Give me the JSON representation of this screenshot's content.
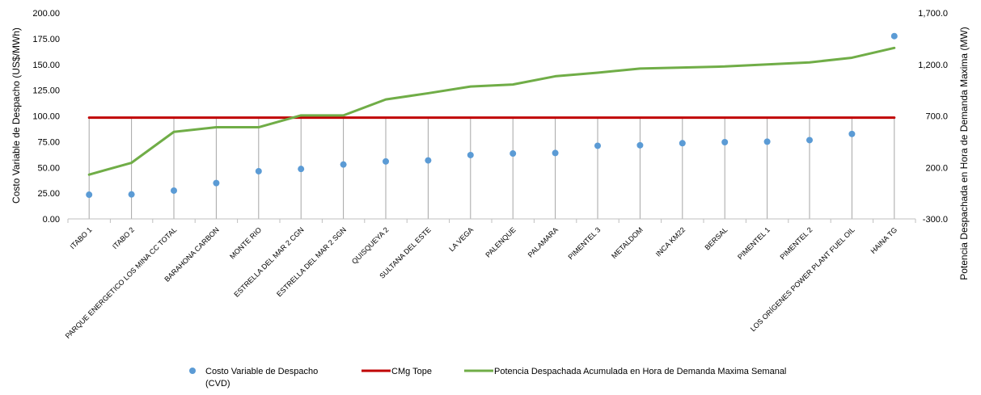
{
  "chart_data": {
    "type": "line",
    "categories": [
      "ITABO 1",
      "ITABO 2",
      "PARQUE ENERGETICO LOS MINA CC TOTAL",
      "BARAHONA CARBON",
      "MONTE RIO",
      "ESTRELLA DEL MAR 2 CGN",
      "ESTRELLA DEL MAR 2 SGN",
      "QUISQUEYA 2",
      "SULTANA DEL ESTE",
      "LA VEGA",
      "PALENQUE",
      "PALAMARA",
      "PIMENTEL 3",
      "METALDOM",
      "INCA KM22",
      "BERSAL",
      "PIMENTEL 1",
      "PIMENTEL 2",
      "LOS ORÍGENES POWER PLANT FUEL OIL",
      "HAINA TG"
    ],
    "ylabel": "Costo Variable de Despacho (US$/MWh)",
    "y2label": "Potencia Despachada en Hora de Demanda Maxima (MW)",
    "ylim": [
      0,
      200
    ],
    "y2lim": [
      -300,
      1700
    ],
    "yticks": [
      "0.00",
      "25.00",
      "50.00",
      "75.00",
      "100.00",
      "125.00",
      "150.00",
      "175.00",
      "200.00"
    ],
    "y2ticks": [
      "-300.0",
      "200.0",
      "700.0",
      "1,200.0",
      "1,700.0"
    ],
    "series": [
      {
        "name": "Costo Variable de Despacho (CVD)",
        "type": "scatter",
        "axis": "left",
        "color": "#5B9BD5",
        "values": [
          23.5,
          23.8,
          27.5,
          34.8,
          46.3,
          48.5,
          52.8,
          55.8,
          56.8,
          62.0,
          63.5,
          64.0,
          71.0,
          71.5,
          73.5,
          74.5,
          75.0,
          76.5,
          82.5,
          177.5
        ]
      },
      {
        "name": "CMg Tope",
        "type": "line",
        "axis": "left",
        "color": "#C00000",
        "values": [
          98.3,
          98.3,
          98.3,
          98.3,
          98.3,
          98.3,
          98.3,
          98.3,
          98.3,
          98.3,
          98.3,
          98.3,
          98.3,
          98.3,
          98.3,
          98.3,
          98.3,
          98.3,
          98.3,
          98.3
        ]
      },
      {
        "name": "Potencia Despachada Acumulada en Hora de Demanda Maxima Semanal",
        "type": "line",
        "axis": "right",
        "color": "#70AD47",
        "values": [
          130,
          245,
          545,
          590,
          590,
          705,
          705,
          860,
          920,
          985,
          1005,
          1085,
          1120,
          1160,
          1170,
          1180,
          1200,
          1220,
          1265,
          1360
        ]
      }
    ],
    "legend": [
      {
        "label": "Costo Variable de Despacho",
        "label2": "(CVD)",
        "marker": "dot",
        "color": "#5B9BD5"
      },
      {
        "label": "CMg Tope",
        "marker": "line",
        "color": "#C00000"
      },
      {
        "label": "Potencia Despachada Acumulada en Hora de Demanda Maxima Semanal",
        "marker": "line",
        "color": "#70AD47"
      }
    ],
    "legend_position": "bottom",
    "grid": false
  }
}
